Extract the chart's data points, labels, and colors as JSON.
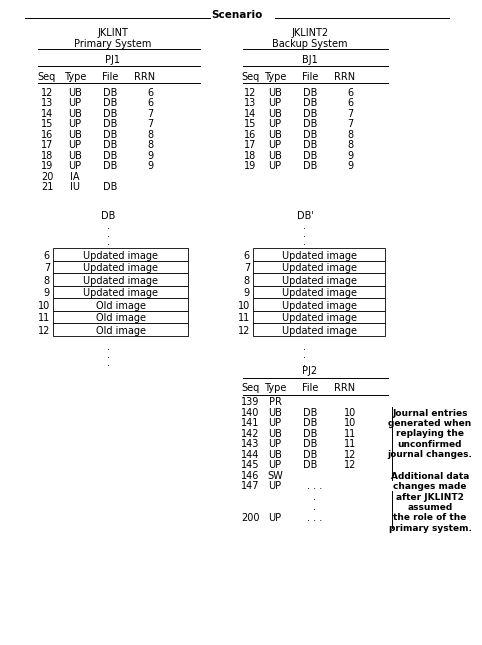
{
  "title": "Scenario",
  "left_system_title": "JKLINT",
  "left_system_subtitle": "Primary System",
  "left_journal_title": "PJ1",
  "left_headers": [
    "Seq",
    "Type",
    "File",
    "RRN"
  ],
  "left_rows": [
    [
      "12",
      "UB",
      "DB",
      "6"
    ],
    [
      "13",
      "UP",
      "DB",
      "6"
    ],
    [
      "14",
      "UB",
      "DB",
      "7"
    ],
    [
      "15",
      "UP",
      "DB",
      "7"
    ],
    [
      "16",
      "UB",
      "DB",
      "8"
    ],
    [
      "17",
      "UP",
      "DB",
      "8"
    ],
    [
      "18",
      "UB",
      "DB",
      "9"
    ],
    [
      "19",
      "UP",
      "DB",
      "9"
    ],
    [
      "20",
      "IA",
      "",
      ""
    ],
    [
      "21",
      "IU",
      "DB",
      ""
    ]
  ],
  "left_db_title": "DB",
  "left_db_rows": [
    [
      "6",
      "Updated image",
      true
    ],
    [
      "7",
      "Updated image",
      true
    ],
    [
      "8",
      "Updated image",
      true
    ],
    [
      "9",
      "Updated image",
      true
    ],
    [
      "10",
      "Old image",
      false
    ],
    [
      "11",
      "Old image",
      false
    ],
    [
      "12",
      "Old image",
      false
    ]
  ],
  "right_system_title": "JKLINT2",
  "right_system_subtitle": "Backup System",
  "right_journal_title": "BJ1",
  "right_headers": [
    "Seq",
    "Type",
    "File",
    "RRN"
  ],
  "right_rows": [
    [
      "12",
      "UB",
      "DB",
      "6"
    ],
    [
      "13",
      "UP",
      "DB",
      "6"
    ],
    [
      "14",
      "UB",
      "DB",
      "7"
    ],
    [
      "15",
      "UP",
      "DB",
      "7"
    ],
    [
      "16",
      "UB",
      "DB",
      "8"
    ],
    [
      "17",
      "UP",
      "DB",
      "8"
    ],
    [
      "18",
      "UB",
      "DB",
      "9"
    ],
    [
      "19",
      "UP",
      "DB",
      "9"
    ]
  ],
  "right_db_title": "DB'",
  "right_db_rows": [
    [
      "6",
      "Updated image",
      true
    ],
    [
      "7",
      "Updated image",
      true
    ],
    [
      "8",
      "Updated image",
      true
    ],
    [
      "9",
      "Updated image",
      true
    ],
    [
      "10",
      "Updated image",
      true
    ],
    [
      "11",
      "Updated image",
      true
    ],
    [
      "12",
      "Updated image",
      true
    ]
  ],
  "pj2_title": "PJ2",
  "pj2_headers": [
    "Seq",
    "Type",
    "File",
    "RRN"
  ],
  "pj2_rows": [
    [
      "139",
      "PR",
      "",
      ""
    ],
    [
      "140",
      "UB",
      "DB",
      "10"
    ],
    [
      "141",
      "UP",
      "DB",
      "10"
    ],
    [
      "142",
      "UB",
      "DB",
      "11"
    ],
    [
      "143",
      "UP",
      "DB",
      "11"
    ],
    [
      "144",
      "UB",
      "DB",
      "12"
    ],
    [
      "145",
      "UP",
      "DB",
      "12"
    ],
    [
      "146",
      "SW",
      "",
      ""
    ],
    [
      "147",
      "UP",
      ". . .",
      ""
    ],
    [
      "",
      "",
      ".",
      ""
    ],
    [
      "",
      "",
      ".",
      ""
    ],
    [
      "200",
      "UP",
      ". . .",
      ""
    ]
  ],
  "annotation1": "Journal entries\ngenerated when\nreplaying the\nunconfirmed\njournal changes.",
  "annotation2": "Additional data\nchanges made\nafter JKLINT2\nassumed\nthe role of the\nprimary system.",
  "bg_color": "#ffffff",
  "line_color": "#000000",
  "font_size": 7.0,
  "title_font_size": 8.0
}
